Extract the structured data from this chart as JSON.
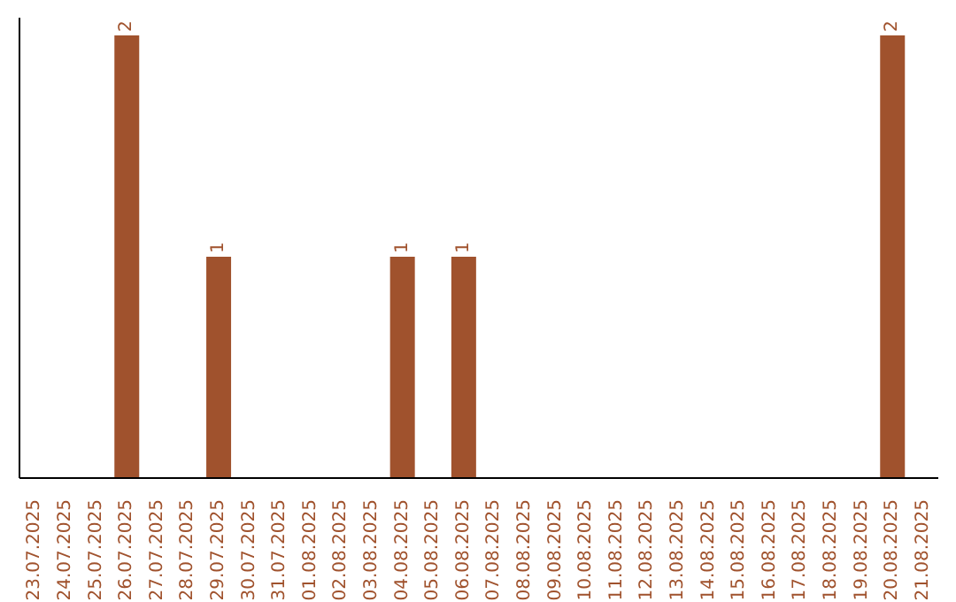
{
  "chart_data": {
    "type": "bar",
    "categories": [
      "23.07.2025",
      "24.07.2025",
      "25.07.2025",
      "26.07.2025",
      "27.07.2025",
      "28.07.2025",
      "29.07.2025",
      "30.07.2025",
      "31.07.2025",
      "01.08.2025",
      "02.08.2025",
      "03.08.2025",
      "04.08.2025",
      "05.08.2025",
      "06.08.2025",
      "07.08.2025",
      "08.08.2025",
      "09.08.2025",
      "10.08.2025",
      "11.08.2025",
      "12.08.2025",
      "13.08.2025",
      "14.08.2025",
      "15.08.2025",
      "16.08.2025",
      "17.08.2025",
      "18.08.2025",
      "19.08.2025",
      "20.08.2025",
      "21.08.2025"
    ],
    "values": [
      null,
      null,
      null,
      2,
      null,
      null,
      1,
      null,
      null,
      null,
      null,
      null,
      1,
      null,
      1,
      null,
      null,
      null,
      null,
      null,
      null,
      null,
      null,
      null,
      null,
      null,
      null,
      null,
      2,
      null
    ],
    "data_labels": true,
    "color": "#a0522d",
    "tick_labels": "x"
  }
}
